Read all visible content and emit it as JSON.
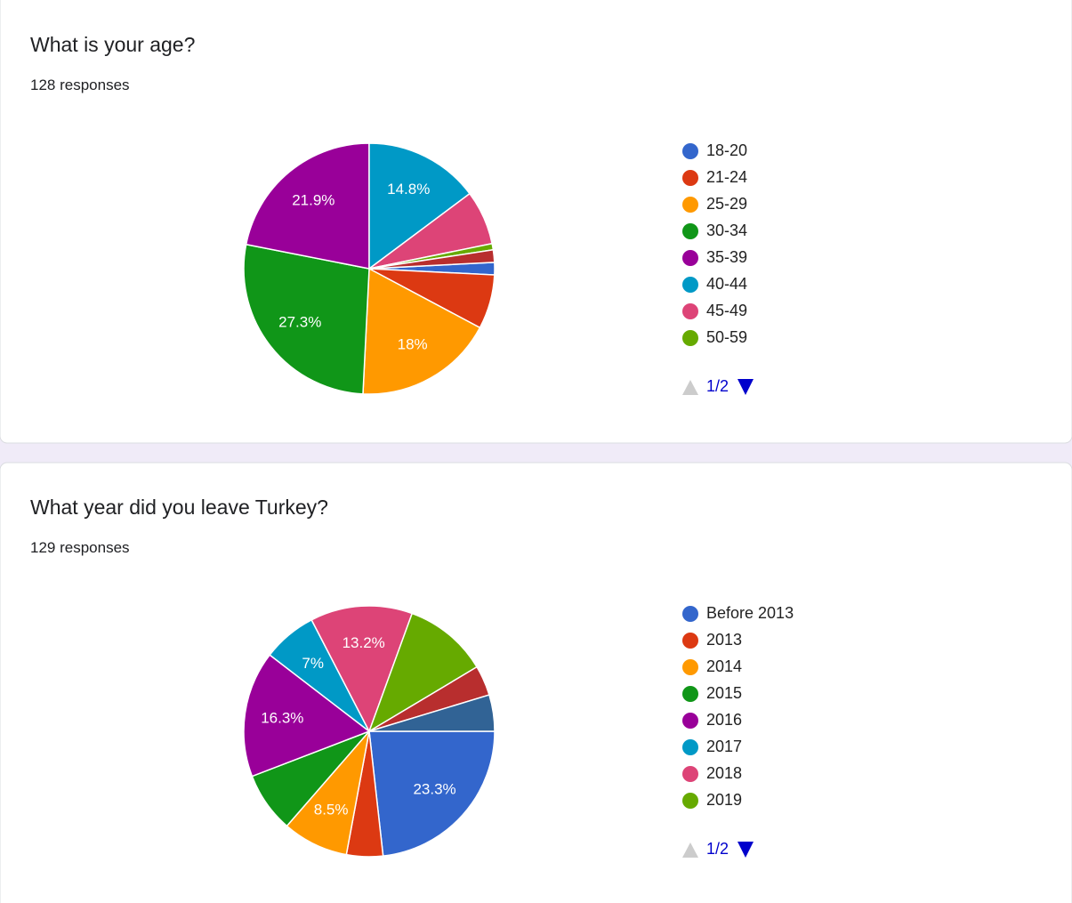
{
  "chart_data": [
    {
      "type": "pie",
      "title": "What is your age?",
      "subtitle": "128 responses",
      "categories": [
        "18-20",
        "21-24",
        "25-29",
        "30-34",
        "35-39",
        "40-44",
        "45-49",
        "50-59",
        null
      ],
      "values": [
        1.6,
        7,
        18,
        27.3,
        21.9,
        14.8,
        7,
        0.8,
        1.6
      ],
      "value_labels": [
        null,
        null,
        "18%",
        "27.3%",
        "21.9%",
        "14.8%",
        null,
        null,
        null
      ],
      "colors": [
        "#3366cc",
        "#dc3912",
        "#ff9900",
        "#109618",
        "#990099",
        "#0099c6",
        "#dd4477",
        "#66aa00",
        "#b82e2e"
      ],
      "legend_page": "1/2"
    },
    {
      "type": "pie",
      "title": "What year did you leave Turkey?",
      "subtitle": "129 responses",
      "categories": [
        "Before 2013",
        "2013",
        "2014",
        "2015",
        "2016",
        "2017",
        "2018",
        "2019",
        null,
        null
      ],
      "values": [
        23.3,
        4.7,
        8.5,
        7.8,
        16.3,
        7,
        13.2,
        10.9,
        3.9,
        4.7
      ],
      "value_labels": [
        "23.3%",
        null,
        "8.5%",
        null,
        "16.3%",
        "7%",
        "13.2%",
        null,
        null,
        null
      ],
      "colors": [
        "#3366cc",
        "#dc3912",
        "#ff9900",
        "#109618",
        "#990099",
        "#0099c6",
        "#dd4477",
        "#66aa00",
        "#b82e2e",
        "#316395"
      ],
      "legend_page": "1/2"
    }
  ]
}
